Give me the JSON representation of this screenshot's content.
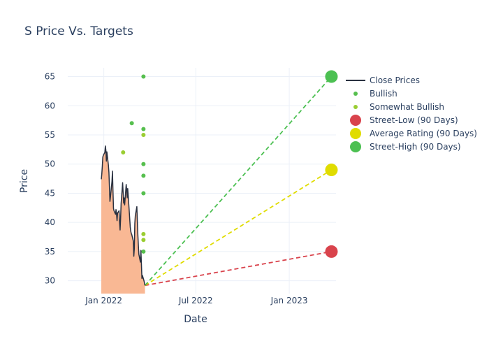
{
  "chart_data": {
    "type": "line",
    "title": "S Price Vs. Targets",
    "xlabel": "Date",
    "ylabel": "Price",
    "x_ticks": [
      "2022-01-01",
      "2022-07-01",
      "2023-01-01"
    ],
    "x_tick_labels": [
      "Jan 2022",
      "Jul 2022",
      "Jan 2023"
    ],
    "y_ticks": [
      30,
      35,
      40,
      45,
      50,
      55,
      60,
      65
    ],
    "xlim": [
      "2021-10-22",
      "2023-04-03"
    ],
    "ylim": [
      27.8,
      66.5
    ],
    "grid": true,
    "legend_position": "right",
    "series": [
      {
        "name": "Close Prices",
        "type": "line-area",
        "color": "#2a3140",
        "fill_color": "#f9b894",
        "points": [
          [
            "2021-12-27",
            47.4
          ],
          [
            "2021-12-28",
            48.3
          ],
          [
            "2021-12-29",
            49.6
          ],
          [
            "2021-12-30",
            51.2
          ],
          [
            "2021-12-31",
            51.5
          ],
          [
            "2022-01-03",
            52.0
          ],
          [
            "2022-01-04",
            53.1
          ],
          [
            "2022-01-05",
            52.4
          ],
          [
            "2022-01-06",
            50.5
          ],
          [
            "2022-01-07",
            52.1
          ],
          [
            "2022-01-10",
            49.8
          ],
          [
            "2022-01-11",
            48.6
          ],
          [
            "2022-01-12",
            46.2
          ],
          [
            "2022-01-13",
            43.6
          ],
          [
            "2022-01-14",
            44.3
          ],
          [
            "2022-01-17",
            47.0
          ],
          [
            "2022-01-18",
            48.8
          ],
          [
            "2022-01-19",
            45.4
          ],
          [
            "2022-01-20",
            42.4
          ],
          [
            "2022-01-21",
            42.0
          ],
          [
            "2022-01-24",
            41.4
          ],
          [
            "2022-01-25",
            42.2
          ],
          [
            "2022-01-26",
            41.5
          ],
          [
            "2022-01-27",
            40.3
          ],
          [
            "2022-01-28",
            41.6
          ],
          [
            "2022-01-31",
            42.0
          ],
          [
            "2022-02-01",
            40.0
          ],
          [
            "2022-02-02",
            38.7
          ],
          [
            "2022-02-03",
            40.6
          ],
          [
            "2022-02-04",
            43.2
          ],
          [
            "2022-02-07",
            46.8
          ],
          [
            "2022-02-08",
            45.1
          ],
          [
            "2022-02-09",
            43.3
          ],
          [
            "2022-02-10",
            44.2
          ],
          [
            "2022-02-11",
            43.0
          ],
          [
            "2022-02-14",
            46.5
          ],
          [
            "2022-02-15",
            45.6
          ],
          [
            "2022-02-16",
            44.2
          ],
          [
            "2022-02-17",
            45.8
          ],
          [
            "2022-02-18",
            44.6
          ],
          [
            "2022-02-22",
            39.2
          ],
          [
            "2022-02-23",
            38.5
          ],
          [
            "2022-02-24",
            38.1
          ],
          [
            "2022-02-25",
            37.9
          ],
          [
            "2022-02-28",
            36.8
          ],
          [
            "2022-03-01",
            34.2
          ],
          [
            "2022-03-02",
            35.5
          ],
          [
            "2022-03-03",
            39.8
          ],
          [
            "2022-03-04",
            41.2
          ],
          [
            "2022-03-07",
            42.7
          ],
          [
            "2022-03-08",
            40.1
          ],
          [
            "2022-03-09",
            37.8
          ],
          [
            "2022-03-10",
            36.0
          ],
          [
            "2022-03-11",
            34.5
          ],
          [
            "2022-03-14",
            33.2
          ],
          [
            "2022-03-15",
            35.2
          ],
          [
            "2022-03-16",
            32.8
          ],
          [
            "2022-03-17",
            30.4
          ],
          [
            "2022-03-18",
            30.9
          ],
          [
            "2022-03-21",
            30.0
          ],
          [
            "2022-03-22",
            29.6
          ],
          [
            "2022-03-23",
            29.2
          ]
        ]
      },
      {
        "name": "Bullish",
        "type": "scatter",
        "color": "#56bf4e",
        "points": [
          [
            "2022-02-25",
            57.0
          ],
          [
            "2022-03-20",
            65.0
          ],
          [
            "2022-03-20",
            56.0
          ],
          [
            "2022-03-20",
            50.0
          ],
          [
            "2022-03-20",
            48.0
          ],
          [
            "2022-03-20",
            45.0
          ],
          [
            "2022-03-20",
            35.0
          ]
        ]
      },
      {
        "name": "Somewhat Bullish",
        "type": "scatter",
        "color": "#9acd32",
        "points": [
          [
            "2022-02-08",
            52.0
          ],
          [
            "2022-03-20",
            55.0
          ],
          [
            "2022-03-20",
            38.0
          ],
          [
            "2022-03-20",
            37.0
          ]
        ]
      },
      {
        "name": "Street-Low (90 Days)",
        "type": "target",
        "color": "#d9434c",
        "points": [
          [
            "2022-03-23",
            29.2
          ],
          [
            "2023-03-25",
            35.0
          ]
        ]
      },
      {
        "name": "Average Rating (90 Days)",
        "type": "target",
        "color": "#e0dc00",
        "points": [
          [
            "2022-03-23",
            29.2
          ],
          [
            "2023-03-25",
            49.0
          ]
        ]
      },
      {
        "name": "Street-High (90 Days)",
        "type": "target",
        "color": "#4cc052",
        "points": [
          [
            "2022-03-23",
            29.2
          ],
          [
            "2023-03-25",
            65.0
          ]
        ]
      }
    ]
  }
}
